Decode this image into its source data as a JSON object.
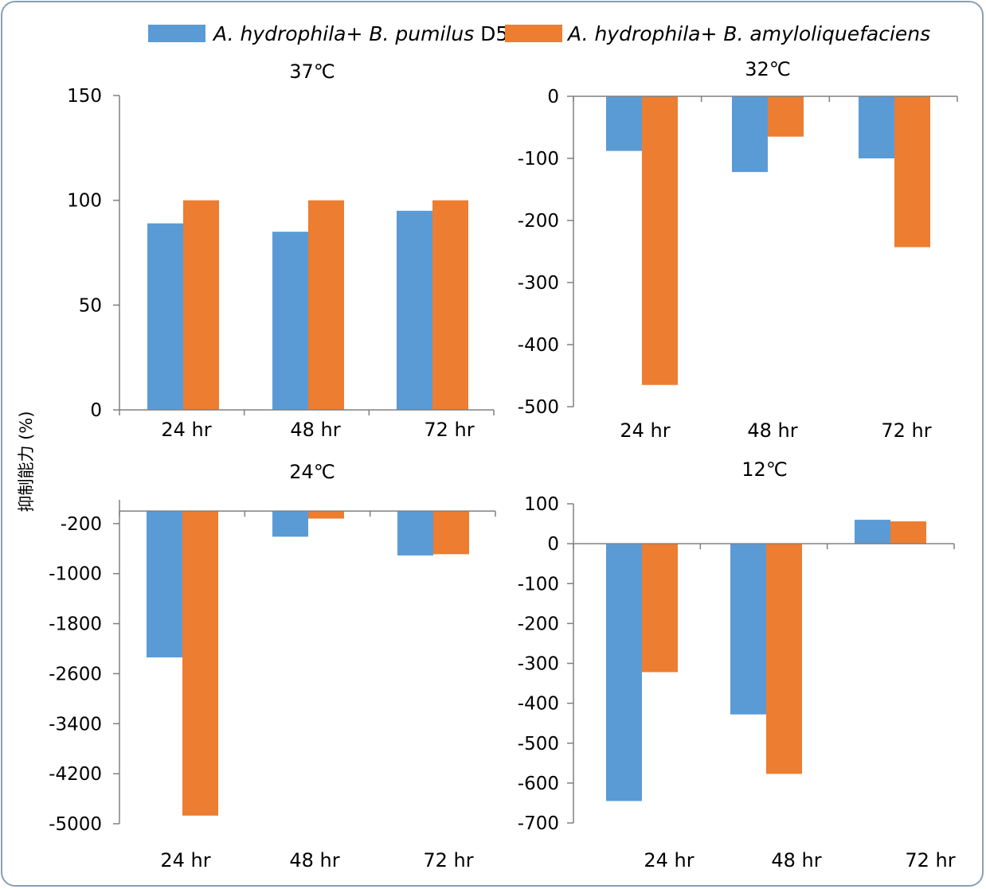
{
  "colors": {
    "series1": "#5b9bd5",
    "series2": "#ed7d31",
    "axis": "#808080",
    "frame": "#8a9fb4"
  },
  "legend": {
    "s1": {
      "main": "A. hydrophila+ B. pumilus",
      "suffix": " D5"
    },
    "s2": {
      "main": "A. hydrophila+ B. amyloliquefaciens"
    }
  },
  "y_axis_label": "抑制能力 (%)",
  "chart_data": [
    {
      "id": "p37",
      "type": "bar",
      "title": "37℃",
      "categories": [
        "24 hr",
        "48 hr",
        "72 hr"
      ],
      "series": [
        {
          "name": "A. hydrophila+ B. pumilus D5",
          "values": [
            89,
            85,
            95
          ]
        },
        {
          "name": "A. hydrophila+ B. amyloliquefaciens",
          "values": [
            100,
            100,
            100
          ]
        }
      ],
      "ylim": [
        0,
        150
      ],
      "yticks": [
        "0",
        "50",
        "100",
        "150"
      ],
      "tick_values": [
        0,
        50,
        100,
        150
      ],
      "xaxis_at": 0
    },
    {
      "id": "p32",
      "type": "bar",
      "title": "32℃",
      "categories": [
        "24 hr",
        "48 hr",
        "72 hr"
      ],
      "series": [
        {
          "name": "A. hydrophila+ B. pumilus D5",
          "values": [
            -88,
            -122,
            -100
          ]
        },
        {
          "name": "A. hydrophila+ B. amyloliquefaciens",
          "values": [
            -465,
            -65,
            -243
          ]
        }
      ],
      "ylim": [
        -500,
        0
      ],
      "yticks": [
        "-500",
        "-400",
        "-300",
        "-200",
        "-100",
        "0"
      ],
      "tick_values": [
        -500,
        -400,
        -300,
        -200,
        -100,
        0
      ],
      "xaxis_at": 0
    },
    {
      "id": "p24",
      "type": "bar",
      "title": "24℃",
      "categories": [
        "24 hr",
        "48 hr",
        "72 hr"
      ],
      "series": [
        {
          "name": "A. hydrophila+ B. pumilus D5",
          "values": [
            -2340,
            -410,
            -710
          ]
        },
        {
          "name": "A. hydrophila+ B. amyloliquefaciens",
          "values": [
            -4870,
            -120,
            -690
          ]
        }
      ],
      "ylim": [
        -5000,
        180
      ],
      "yticks": [
        "-5000",
        "-4200",
        "-3400",
        "-2600",
        "-1800",
        "-1000",
        "-200"
      ],
      "tick_values": [
        -5000,
        -4200,
        -3400,
        -2600,
        -1800,
        -1000,
        -200
      ],
      "xaxis_at": 0
    },
    {
      "id": "p12",
      "type": "bar",
      "title": "12℃",
      "categories": [
        "24 hr",
        "48 hr",
        "72 hr"
      ],
      "series": [
        {
          "name": "A. hydrophila+ B. pumilus D5",
          "values": [
            -645,
            -428,
            60
          ]
        },
        {
          "name": "A. hydrophila+ B. amyloliquefaciens",
          "values": [
            -322,
            -577,
            56
          ]
        }
      ],
      "ylim": [
        -700,
        100
      ],
      "yticks": [
        "-700",
        "-600",
        "-500",
        "-400",
        "-300",
        "-200",
        "-100",
        "0",
        "100"
      ],
      "tick_values": [
        -700,
        -600,
        -500,
        -400,
        -300,
        -200,
        -100,
        0,
        100
      ],
      "xaxis_at": 0
    }
  ]
}
